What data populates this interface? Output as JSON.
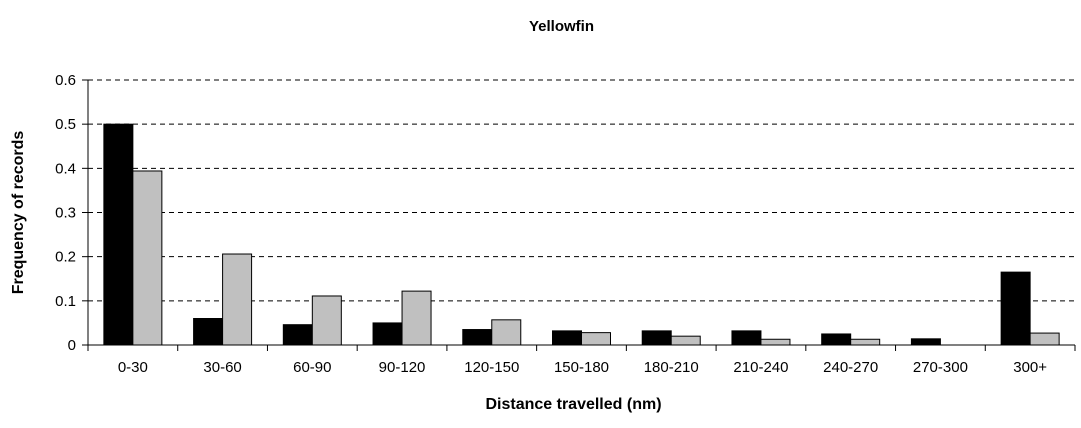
{
  "chart_data": {
    "type": "bar",
    "title": "Yellowfin",
    "xlabel": "Distance travelled (nm)",
    "ylabel": "Frequency of records",
    "ylim": [
      0,
      0.6
    ],
    "yticks": [
      "0",
      "0.1",
      "0.2",
      "0.3",
      "0.4",
      "0.5",
      "0.6"
    ],
    "grid": true,
    "legend": "none",
    "categories": [
      "0-30",
      "30-60",
      "60-90",
      "90-120",
      "120-150",
      "150-180",
      "180-210",
      "210-240",
      "240-270",
      "270-300",
      "300+"
    ],
    "series": [
      {
        "values": [
          0.5,
          0.06,
          0.046,
          0.05,
          0.035,
          0.032,
          0.032,
          0.032,
          0.025,
          0.014,
          0.165
        ],
        "color": "#000000"
      },
      {
        "values": [
          0.394,
          0.206,
          0.111,
          0.122,
          0.057,
          0.028,
          0.02,
          0.013,
          0.013,
          0.0,
          0.027
        ],
        "color": "#c0c0c0"
      }
    ]
  }
}
